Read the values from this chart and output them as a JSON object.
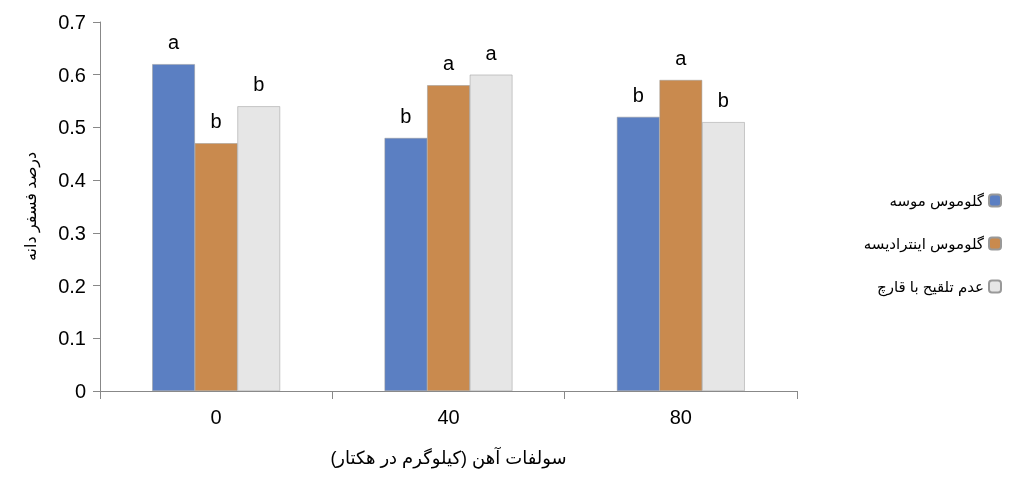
{
  "chart_data": {
    "type": "bar",
    "xlabel": "سولفات آهن (کیلوگرم در هکتار)",
    "ylabel": "درصد فسفر دانه",
    "categories": [
      "0",
      "40",
      "80"
    ],
    "series": [
      {
        "name": "گلوموس موسه",
        "color": "#5b7fc2",
        "values": [
          0.62,
          0.48,
          0.52
        ],
        "value_labels": [
          "a",
          "b",
          "b"
        ]
      },
      {
        "name": "گلوموس اینترادیسه",
        "color": "#c98a4e",
        "values": [
          0.47,
          0.58,
          0.59
        ],
        "value_labels": [
          "b",
          "a",
          "a"
        ]
      },
      {
        "name": "عدم تلقیح با قارچ",
        "color": "#e6e6e6",
        "values": [
          0.54,
          0.6,
          0.51
        ],
        "value_labels": [
          "b",
          "a",
          "b"
        ]
      }
    ],
    "ylim": [
      0,
      0.7
    ],
    "yticks": [
      0,
      0.1,
      0.2,
      0.3,
      0.4,
      0.5,
      0.6,
      0.7
    ],
    "grid": false,
    "legend": "right"
  }
}
